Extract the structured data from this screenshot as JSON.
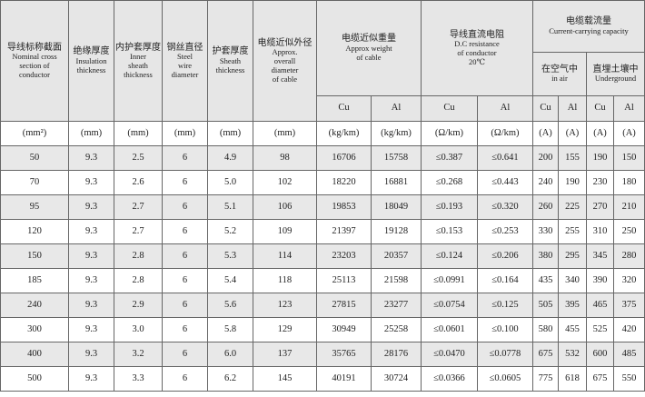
{
  "header": {
    "columns": [
      {
        "zh": "导线标称截面",
        "en": [
          "Nominal cross",
          "section of",
          "conductor"
        ]
      },
      {
        "zh": "绝缘厚度",
        "en": [
          "Insulation",
          "thickness"
        ]
      },
      {
        "zh": "内护套厚度",
        "en": [
          "Inner",
          "sheath",
          "thickness"
        ]
      },
      {
        "zh": "钢丝直径",
        "en": [
          "Steel",
          "wire",
          "diameter"
        ]
      },
      {
        "zh": "护套厚度",
        "en": [
          "Sheath",
          "thickness"
        ]
      },
      {
        "zh": "电缆近似外径",
        "en": [
          "Approx.",
          "overall",
          "diameter",
          "of cable"
        ]
      }
    ],
    "weight": {
      "zh": "电缆近似重量",
      "en": [
        "Approx weight",
        "of cable"
      ]
    },
    "resistance": {
      "zh": "导线直流电阻",
      "en": [
        "D.C resistance",
        "of conductor",
        "20℃"
      ]
    },
    "capacity": {
      "zh": "电缆载流量",
      "en": [
        "Current-carrying capacity"
      ]
    },
    "in_air": {
      "zh": "在空气中",
      "en": [
        "in air"
      ]
    },
    "underground": {
      "zh": "直埋土壤中",
      "en": [
        "Underground"
      ]
    },
    "subcols": [
      "Cu",
      "Al",
      "Cu",
      "Al",
      "Cu",
      "Al",
      "Cu",
      "Al"
    ]
  },
  "units": [
    "(mm²)",
    "(mm)",
    "(mm)",
    "(mm)",
    "(mm)",
    "(mm)",
    "(kg/km)",
    "(kg/km)",
    "(Ω/km)",
    "(Ω/km)",
    "(A)",
    "(A)",
    "(A)",
    "(A)"
  ],
  "rows": [
    [
      "50",
      "9.3",
      "2.5",
      "6",
      "4.9",
      "98",
      "16706",
      "15758",
      "≤0.387",
      "≤0.641",
      "200",
      "155",
      "190",
      "150"
    ],
    [
      "70",
      "9.3",
      "2.6",
      "6",
      "5.0",
      "102",
      "18220",
      "16881",
      "≤0.268",
      "≤0.443",
      "240",
      "190",
      "230",
      "180"
    ],
    [
      "95",
      "9.3",
      "2.7",
      "6",
      "5.1",
      "106",
      "19853",
      "18049",
      "≤0.193",
      "≤0.320",
      "260",
      "225",
      "270",
      "210"
    ],
    [
      "120",
      "9.3",
      "2.7",
      "6",
      "5.2",
      "109",
      "21397",
      "19128",
      "≤0.153",
      "≤0.253",
      "330",
      "255",
      "310",
      "250"
    ],
    [
      "150",
      "9.3",
      "2.8",
      "6",
      "5.3",
      "114",
      "23203",
      "20357",
      "≤0.124",
      "≤0.206",
      "380",
      "295",
      "345",
      "280"
    ],
    [
      "185",
      "9.3",
      "2.8",
      "6",
      "5.4",
      "118",
      "25113",
      "21598",
      "≤0.0991",
      "≤0.164",
      "435",
      "340",
      "390",
      "320"
    ],
    [
      "240",
      "9.3",
      "2.9",
      "6",
      "5.6",
      "123",
      "27815",
      "23277",
      "≤0.0754",
      "≤0.125",
      "505",
      "395",
      "465",
      "375"
    ],
    [
      "300",
      "9.3",
      "3.0",
      "6",
      "5.8",
      "129",
      "30949",
      "25258",
      "≤0.0601",
      "≤0.100",
      "580",
      "455",
      "525",
      "420"
    ],
    [
      "400",
      "9.3",
      "3.2",
      "6",
      "6.0",
      "137",
      "35765",
      "28176",
      "≤0.0470",
      "≤0.0778",
      "675",
      "532",
      "600",
      "485"
    ],
    [
      "500",
      "9.3",
      "3.3",
      "6",
      "6.2",
      "145",
      "40191",
      "30724",
      "≤0.0366",
      "≤0.0605",
      "775",
      "618",
      "675",
      "550"
    ]
  ]
}
